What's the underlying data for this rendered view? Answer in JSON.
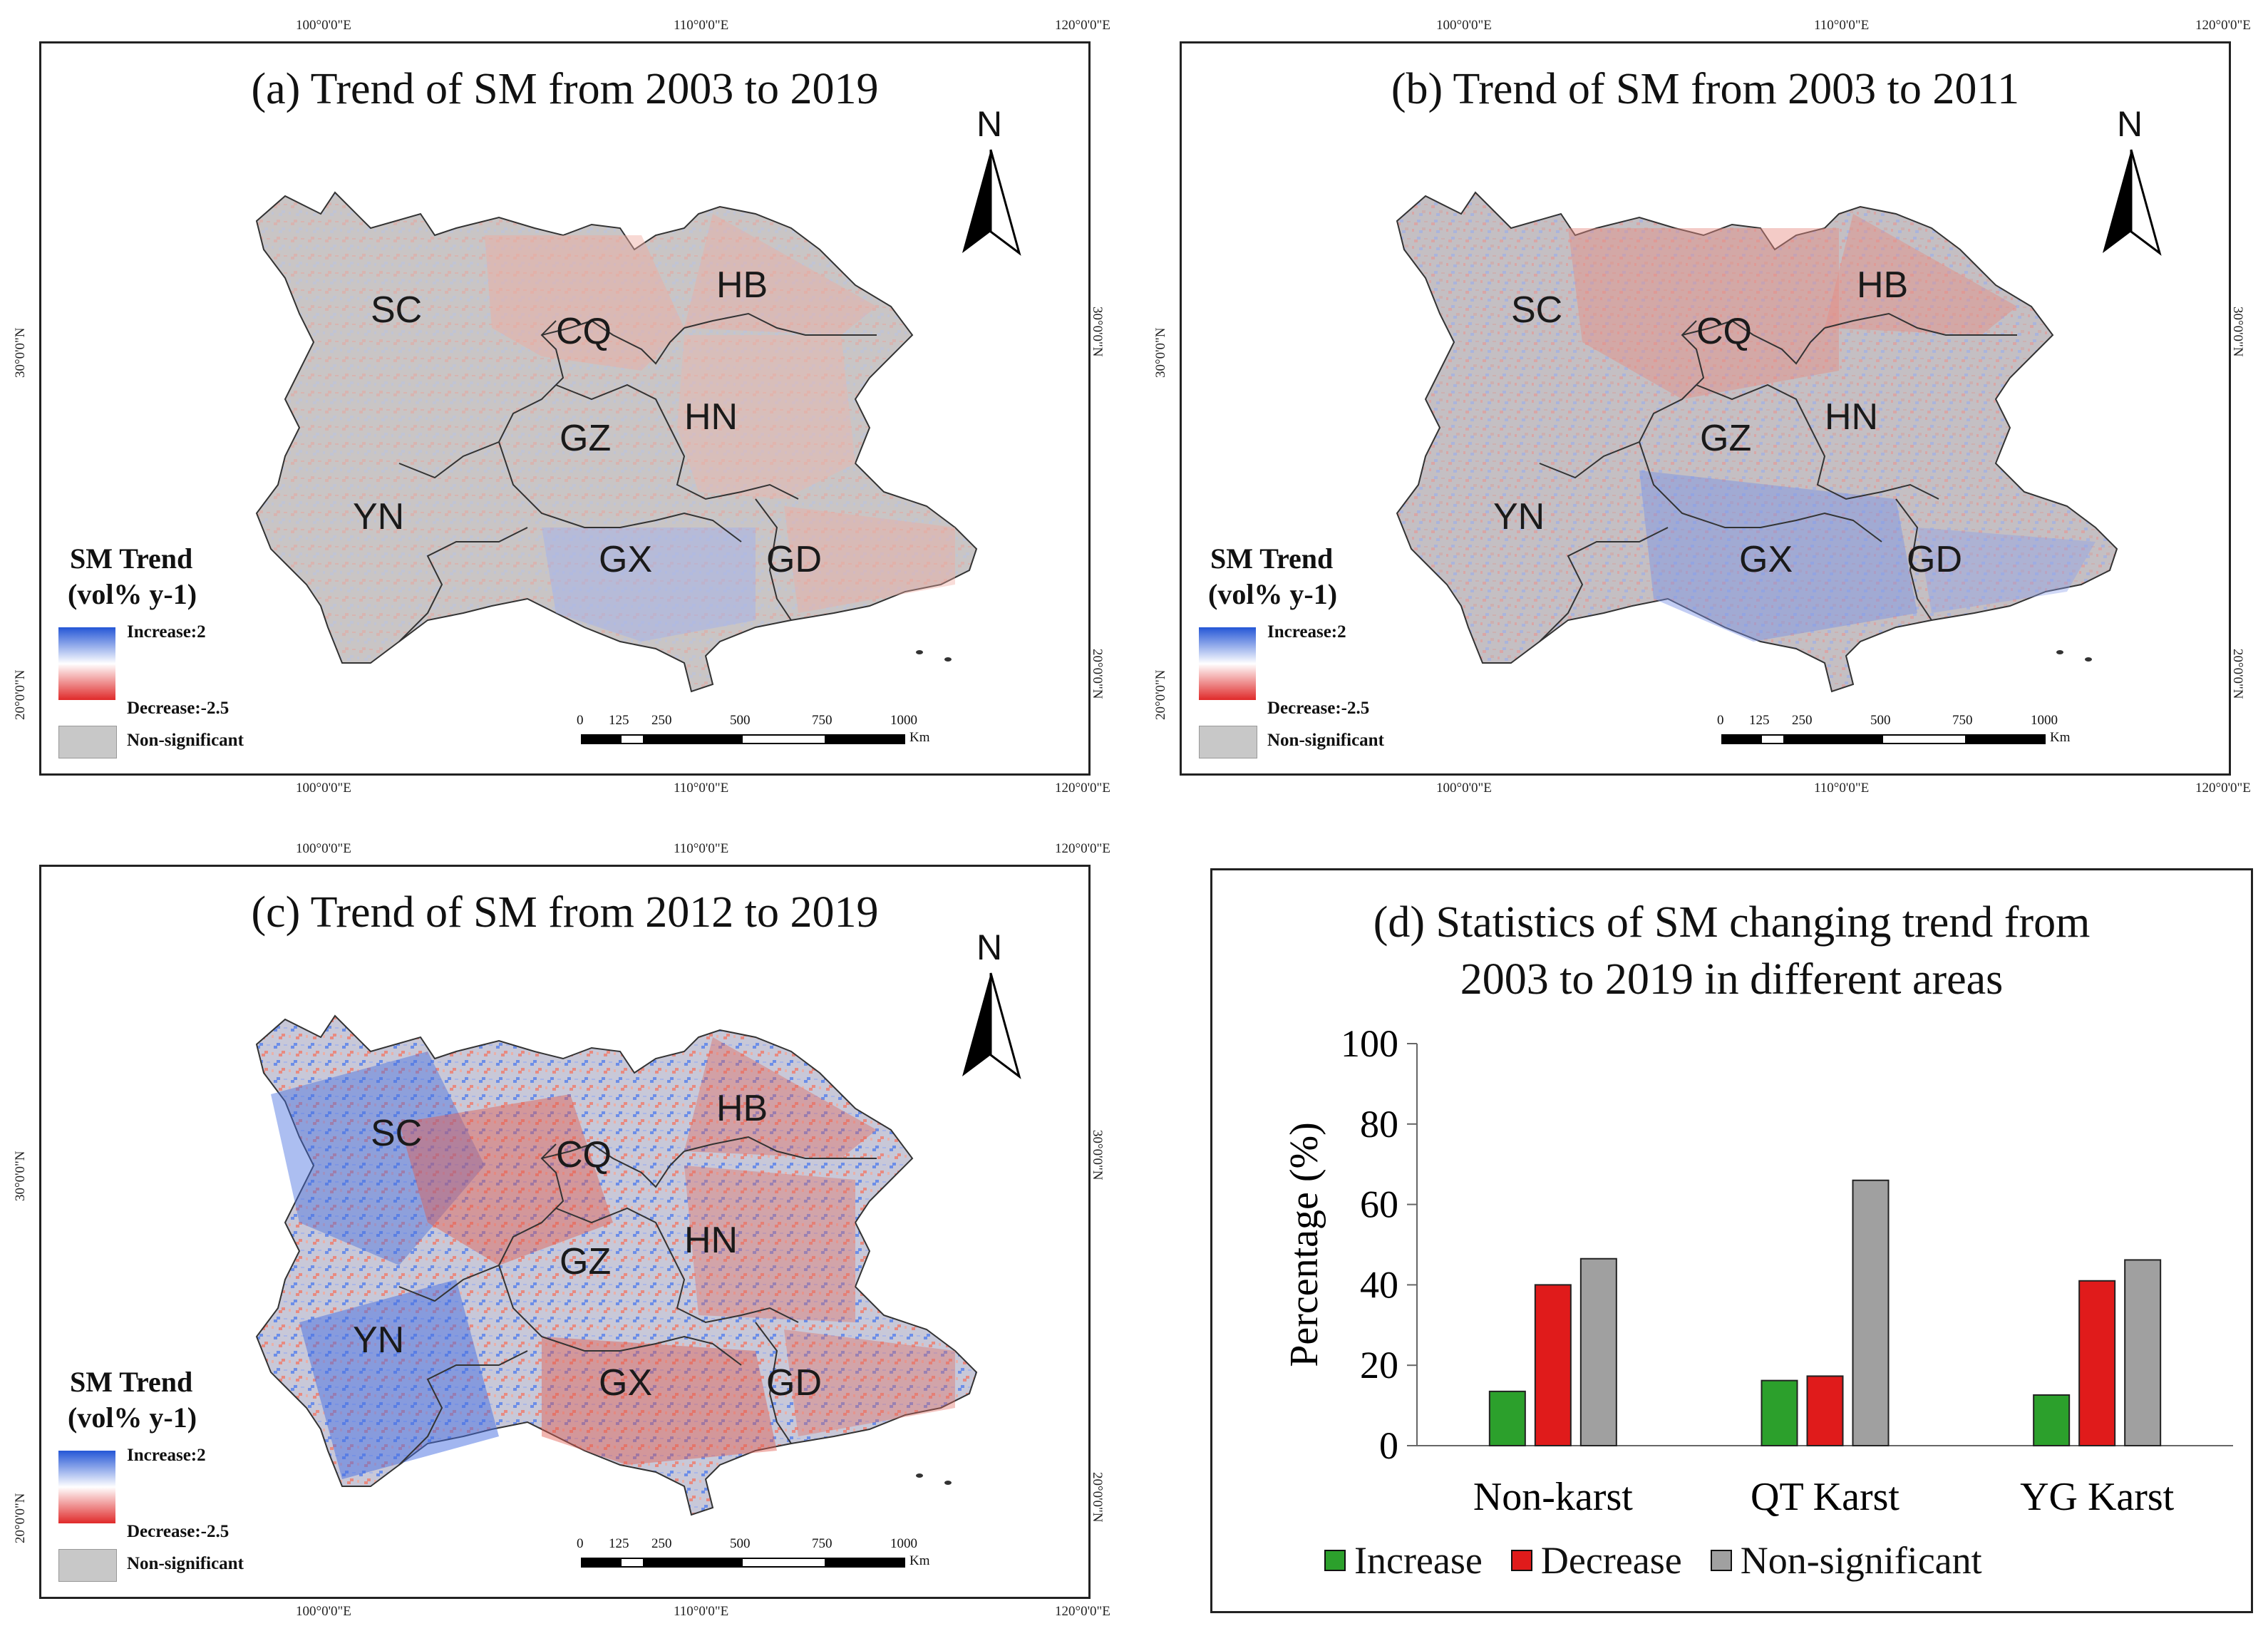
{
  "colors": {
    "increase": "#2c5ae0",
    "decrease": "#e02a2a",
    "nonsig": "#c0c0c0",
    "bar_increase": "#2ca02c",
    "bar_decrease": "#e01b1b",
    "bar_nonsig": "#a0a0a0"
  },
  "maps": [
    {
      "title": "(a) Trend of SM from 2003 to 2019",
      "style": "mostly-nonsig"
    },
    {
      "title": "(b) Trend of SM from 2003 to 2011",
      "style": "mixed-light"
    },
    {
      "title": "(c) Trend of SM from 2012 to 2019",
      "style": "mixed-strong"
    }
  ],
  "regions": [
    "SC",
    "CQ",
    "HB",
    "GZ",
    "HN",
    "YN",
    "GX",
    "GD"
  ],
  "coords": {
    "lon": [
      "100°0'0\"E",
      "110°0'0\"E",
      "120°0'0\"E"
    ],
    "lat": [
      "30°0'0\"N",
      "20°0'0\"N"
    ]
  },
  "north": "N",
  "legend": {
    "title1": "SM Trend",
    "title2": "(vol% y-1)",
    "title2_c": "(vol%  y-1)",
    "increase": "Increase:2",
    "decrease": "Decrease:-2.5",
    "nonsig": "Non-significant"
  },
  "scale": {
    "ticks": [
      "0",
      "125",
      "250",
      "500",
      "750",
      "1000"
    ],
    "unit": "Km"
  },
  "chart_data": {
    "type": "bar",
    "title": "(d) Statistics of SM changing trend from 2003 to 2019 in different areas",
    "title_line1": "(d) Statistics of SM changing trend from",
    "title_line2": "2003 to 2019 in different areas",
    "ylabel": "Percentage (%)",
    "xlabel": "",
    "ylim": [
      0,
      100
    ],
    "yticks": [
      0,
      20,
      40,
      60,
      80,
      100
    ],
    "categories": [
      "Non-karst",
      "QT Karst",
      "YG Karst"
    ],
    "series": [
      {
        "name": "Increase",
        "values": [
          13.5,
          16.2,
          12.6
        ]
      },
      {
        "name": "Decrease",
        "values": [
          40.0,
          17.3,
          41.0
        ]
      },
      {
        "name": "Non-significant",
        "values": [
          46.5,
          66.0,
          46.2
        ]
      }
    ],
    "legend": "bottom",
    "grid": false
  }
}
